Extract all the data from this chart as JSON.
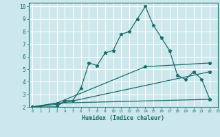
{
  "title": "",
  "xlabel": "Humidex (Indice chaleur)",
  "ylabel": "",
  "background_color": "#cce8ec",
  "grid_color": "#ffffff",
  "line_color": "#1a6b6b",
  "xlim": [
    -0.5,
    23
  ],
  "ylim": [
    2,
    10.3
  ],
  "yticks": [
    2,
    3,
    4,
    5,
    6,
    7,
    8,
    9,
    10
  ],
  "xticks": [
    0,
    1,
    2,
    3,
    4,
    5,
    6,
    7,
    8,
    9,
    10,
    11,
    12,
    13,
    14,
    15,
    16,
    17,
    18,
    19,
    20,
    21,
    22,
    23
  ],
  "series": [
    {
      "x": [
        0,
        1,
        3,
        4,
        5,
        6,
        7,
        8,
        9,
        10,
        11,
        12,
        13,
        14,
        15,
        16,
        17,
        18,
        19,
        20,
        21,
        22
      ],
      "y": [
        2,
        2,
        2,
        2.5,
        2.5,
        3.5,
        5.5,
        5.3,
        6.3,
        6.5,
        7.8,
        8.0,
        9.0,
        10.0,
        8.5,
        7.5,
        6.5,
        4.5,
        4.2,
        4.8,
        4.2,
        2.6
      ]
    },
    {
      "x": [
        0,
        3,
        14,
        22
      ],
      "y": [
        2,
        2.3,
        5.2,
        5.5
      ]
    },
    {
      "x": [
        0,
        3,
        22
      ],
      "y": [
        2,
        2.2,
        4.8
      ]
    },
    {
      "x": [
        0,
        3,
        22
      ],
      "y": [
        2,
        2.3,
        2.6
      ]
    }
  ]
}
